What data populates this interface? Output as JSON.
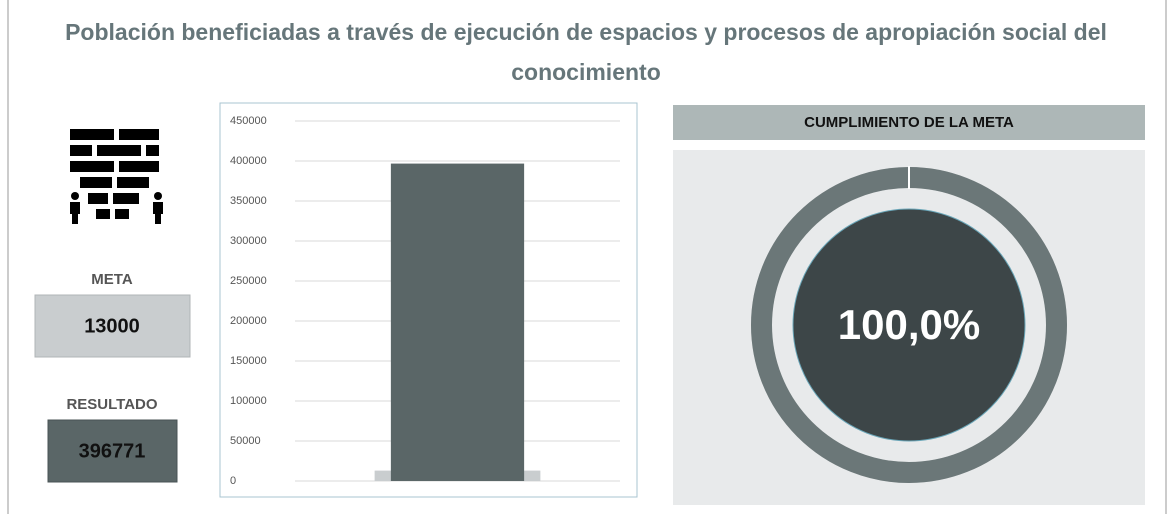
{
  "title": "Población beneficiadas a través de ejecución de espacios y procesos de apropiación social del conocimiento",
  "meta": {
    "label": "META",
    "value": "13000"
  },
  "resultado": {
    "label": "RESULTADO",
    "value": "396771"
  },
  "chart_data": [
    {
      "type": "bar",
      "categories": [
        null
      ],
      "series": [
        {
          "color": "#c9cdcf",
          "values": [
            13000
          ]
        },
        {
          "color": "#5a6667",
          "values": [
            396771
          ]
        }
      ],
      "ylim": [
        0,
        450000
      ],
      "yticks": [
        0,
        50000,
        100000,
        150000,
        200000,
        250000,
        300000,
        350000,
        400000,
        450000
      ],
      "grid": true
    },
    {
      "type": "donut",
      "title": "CUMPLIMIENTO DE LA META",
      "values": [
        100
      ],
      "value_labels": [
        "100,0%"
      ],
      "color": "#6b7778"
    }
  ]
}
